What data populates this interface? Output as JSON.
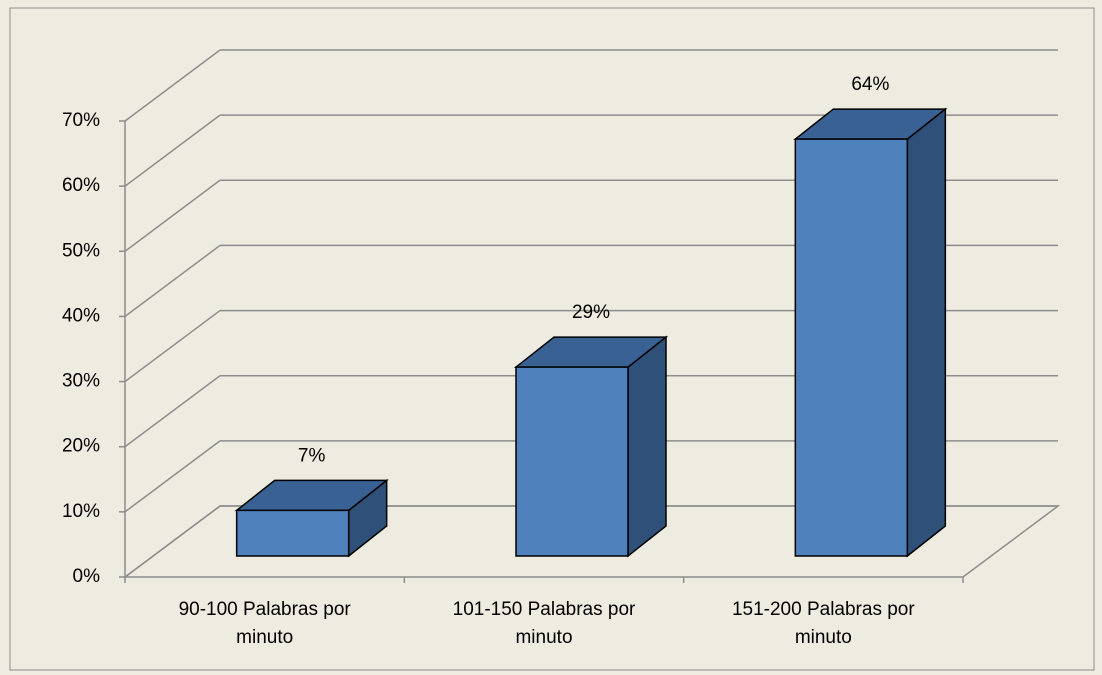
{
  "chart_data": {
    "type": "bar3d",
    "categories": [
      "90-100 Palabras por minuto",
      "101-150 Palabras por minuto",
      "151-200 Palabras por minuto"
    ],
    "values": [
      7,
      29,
      64
    ],
    "value_labels": [
      "7%",
      "29%",
      "64%"
    ],
    "color": "#4f81bd",
    "ylim": [
      0,
      70
    ],
    "yticks": [
      {
        "value": 0,
        "label": "0%"
      },
      {
        "value": 10,
        "label": "10%"
      },
      {
        "value": 20,
        "label": "20%"
      },
      {
        "value": 30,
        "label": "30%"
      },
      {
        "value": 40,
        "label": "40%"
      },
      {
        "value": 50,
        "label": "50%"
      },
      {
        "value": 60,
        "label": "60%"
      },
      {
        "value": 70,
        "label": "70%"
      }
    ],
    "grid": true
  }
}
